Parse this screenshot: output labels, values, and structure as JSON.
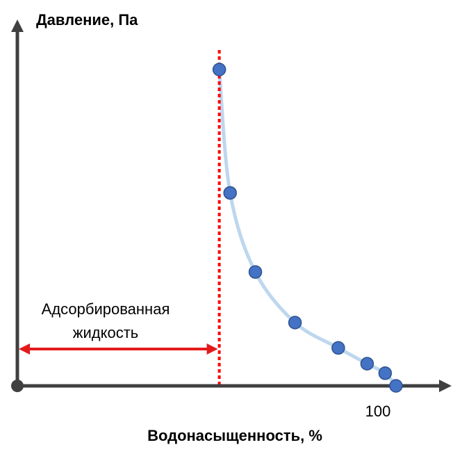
{
  "chart_data": {
    "type": "scatter",
    "ylabel": "Давление, Па",
    "xlabel": "Водонасыщенность, %",
    "x_ticks": [
      100
    ],
    "x_tick_labels": [
      "100"
    ],
    "x_range": [
      0,
      120
    ],
    "series": [
      {
        "points": [
          {
            "x": 56,
            "y": 100
          },
          {
            "x": 59,
            "y": 61
          },
          {
            "x": 66,
            "y": 36
          },
          {
            "x": 77,
            "y": 20
          },
          {
            "x": 89,
            "y": 12
          },
          {
            "x": 97,
            "y": 7
          },
          {
            "x": 102,
            "y": 4
          },
          {
            "x": 105,
            "y": 0
          }
        ]
      }
    ],
    "fit_curve": true,
    "threshold_x": 56,
    "annotation": {
      "lines": [
        "Адсорбированная",
        "жидкость"
      ],
      "x_from": 0,
      "x_to": 56
    },
    "colors": {
      "axis": "#404040",
      "points": "#4472c4",
      "points_stroke": "#2f528f",
      "curve": "#bdd7ee",
      "threshold": "#ff0000",
      "arrow": "#e31a1c"
    }
  }
}
